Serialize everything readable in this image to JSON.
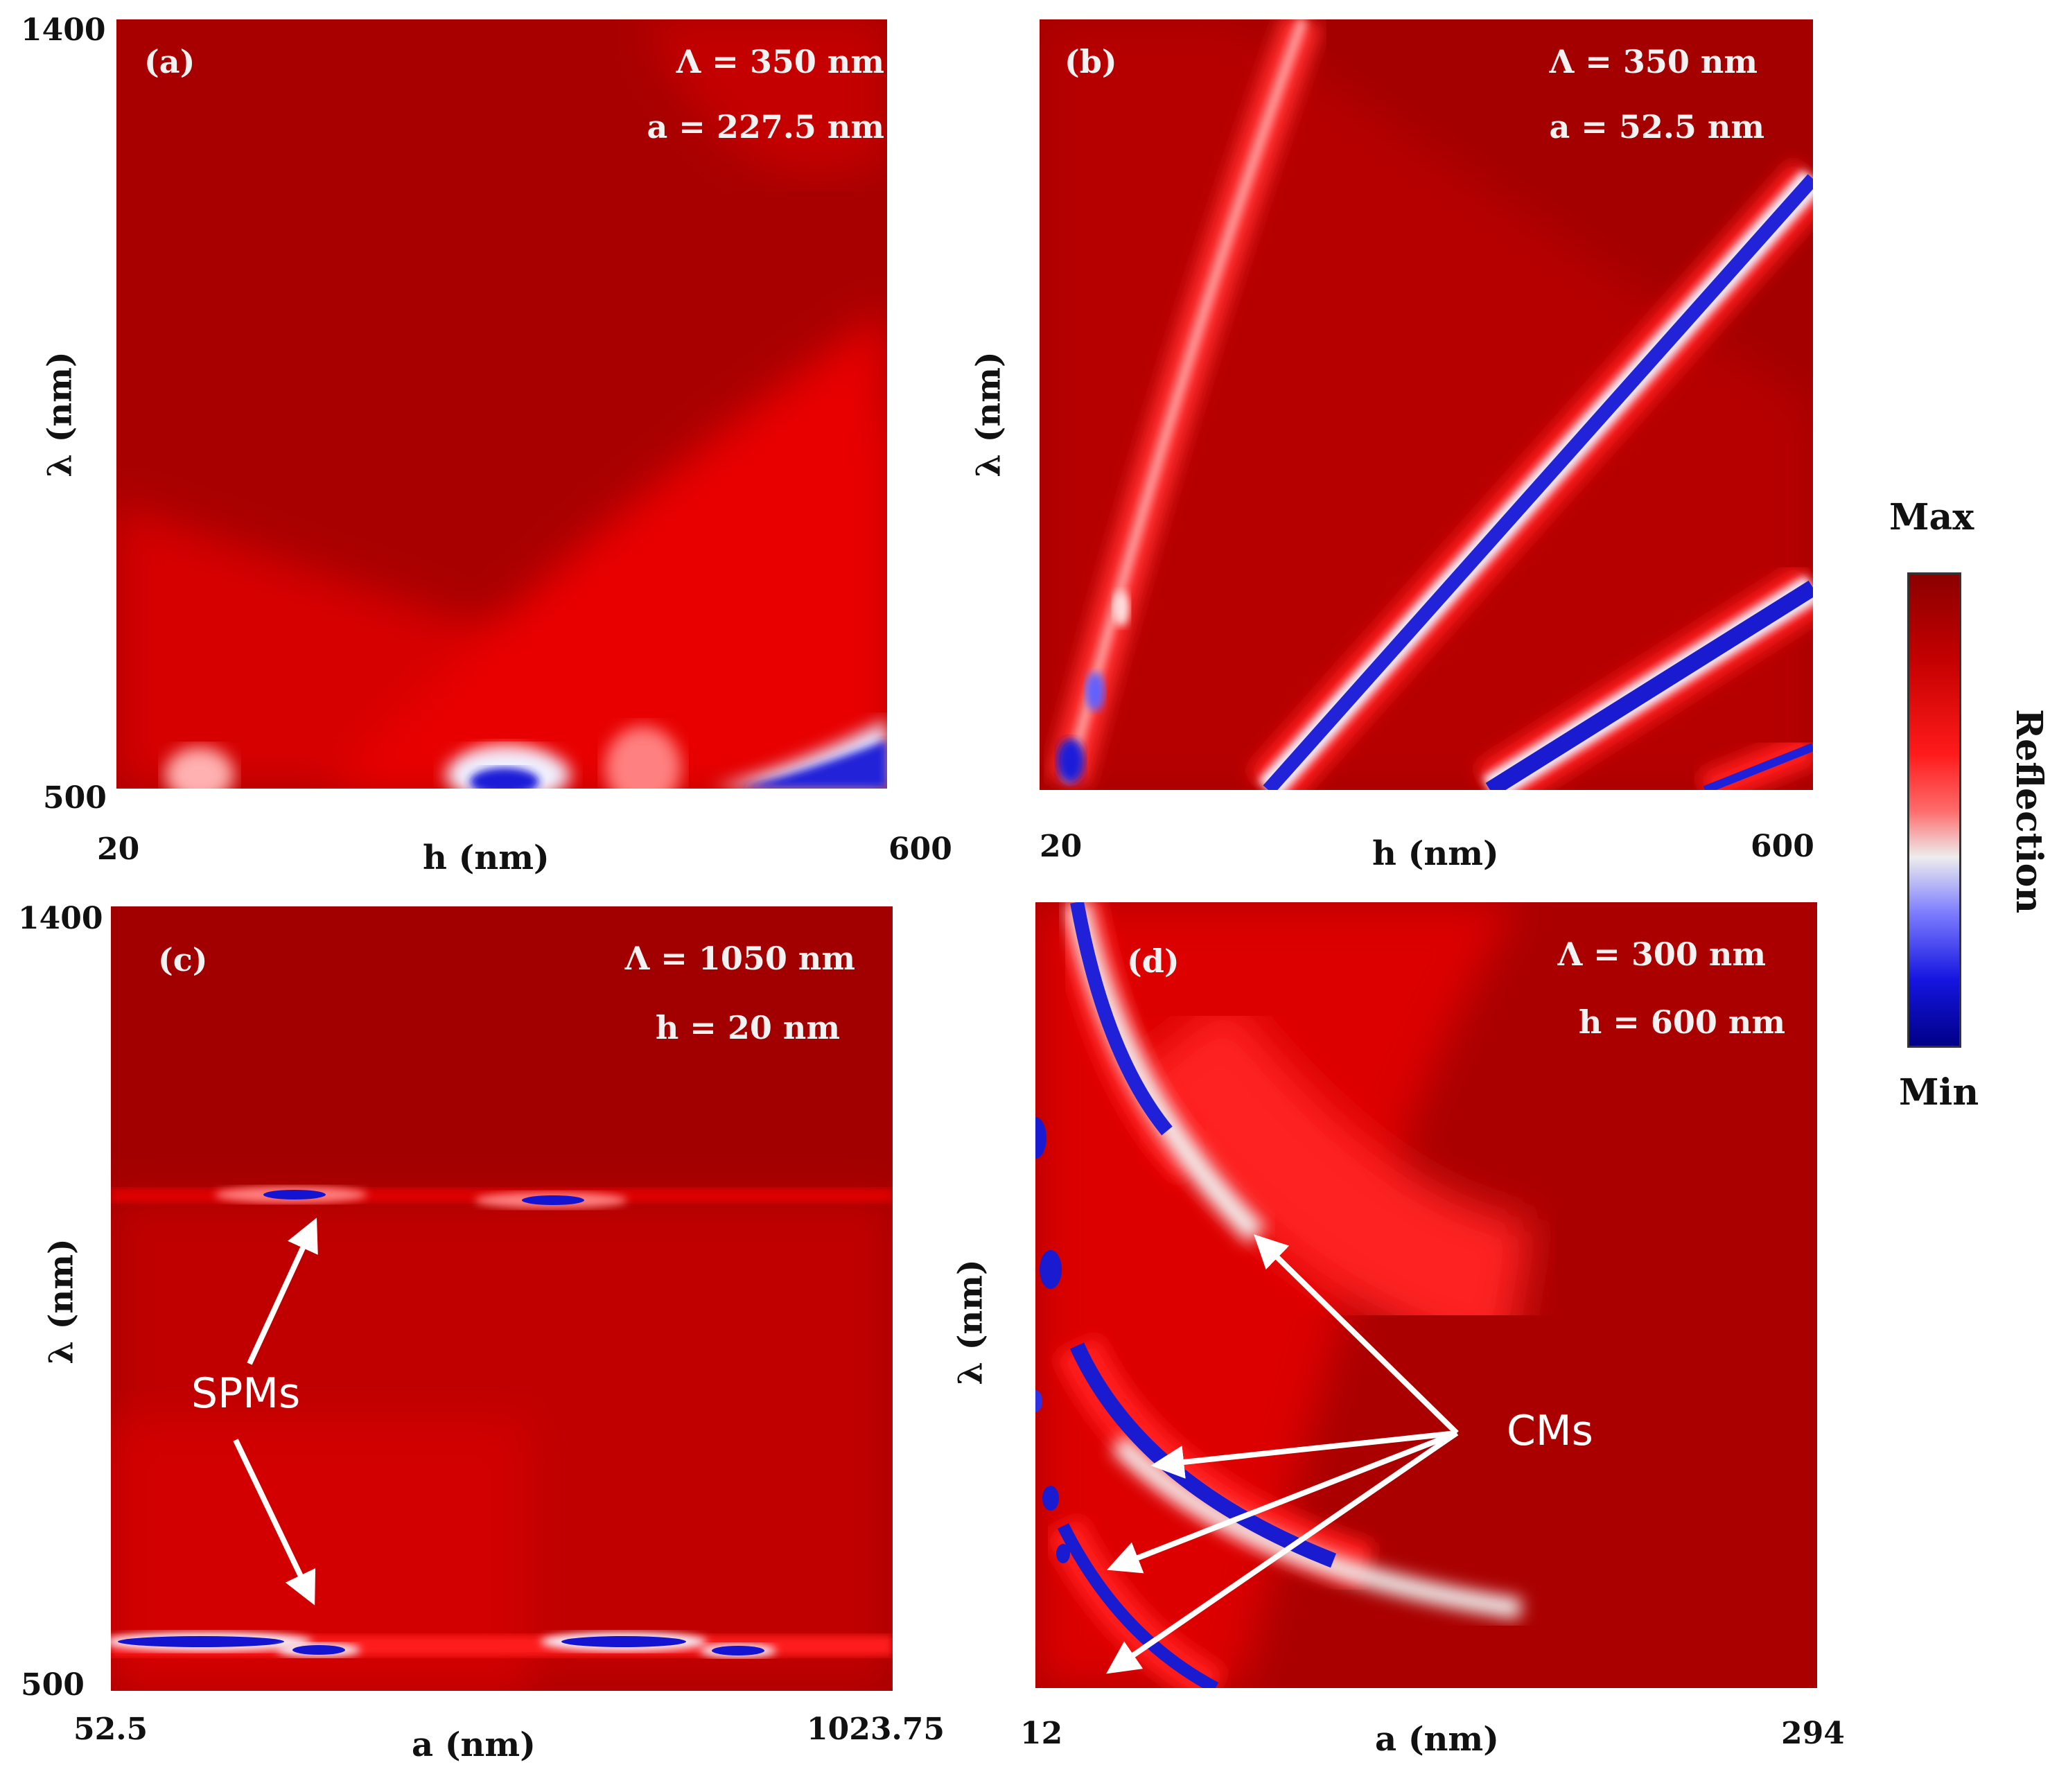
{
  "colorbar": {
    "max_label": "Max",
    "min_label": "Min",
    "title": "Reflection"
  },
  "panels": [
    {
      "id": "a",
      "tag": "(a)",
      "ann": [
        "Λ = 350 nm",
        "a = 227.5 nm"
      ],
      "xlabel": "h (nm)",
      "ylabel": "λ (nm)",
      "xticks": [
        "20",
        "600"
      ],
      "yticks": [
        "1400",
        "500"
      ]
    },
    {
      "id": "b",
      "tag": "(b)",
      "ann": [
        "Λ = 350 nm",
        "a = 52.5 nm"
      ],
      "xlabel": "h (nm)",
      "ylabel": "λ (nm)",
      "xticks": [
        "20",
        "600"
      ],
      "yticks": []
    },
    {
      "id": "c",
      "tag": "(c)",
      "ann": [
        "Λ = 1050 nm",
        "h = 20 nm"
      ],
      "xlabel": "a (nm)",
      "ylabel": "λ (nm)",
      "xticks": [
        "52.5",
        "1023.75"
      ],
      "yticks": [
        "1400",
        "500"
      ],
      "mode_label": "SPMs"
    },
    {
      "id": "d",
      "tag": "(d)",
      "ann": [
        "Λ = 300 nm",
        "h = 600 nm"
      ],
      "xlabel": "a (nm)",
      "ylabel": "λ (nm)",
      "xticks": [
        "12",
        "294"
      ],
      "yticks": [],
      "mode_label": "CMs"
    }
  ],
  "chart_data": [
    {
      "type": "heatmap",
      "panel": "(a)",
      "title": "",
      "xlabel": "h (nm)",
      "ylabel": "λ (nm)",
      "xlim": [
        20,
        600
      ],
      "ylim": [
        500,
        1400
      ],
      "colorbar": [
        "Min",
        "Max"
      ],
      "quantity": "Reflection",
      "params": {
        "Λ": "350 nm",
        "a": "227.5 nm"
      }
    },
    {
      "type": "heatmap",
      "panel": "(b)",
      "title": "",
      "xlabel": "h (nm)",
      "ylabel": "λ (nm)",
      "xlim": [
        20,
        600
      ],
      "ylim": [
        500,
        1400
      ],
      "colorbar": [
        "Min",
        "Max"
      ],
      "quantity": "Reflection",
      "params": {
        "Λ": "350 nm",
        "a": "52.5 nm"
      }
    },
    {
      "type": "heatmap",
      "panel": "(c)",
      "title": "",
      "xlabel": "a (nm)",
      "ylabel": "λ (nm)",
      "xlim": [
        52.5,
        1023.75
      ],
      "ylim": [
        500,
        1400
      ],
      "colorbar": [
        "Min",
        "Max"
      ],
      "quantity": "Reflection",
      "params": {
        "Λ": "1050 nm",
        "h": "20 nm"
      },
      "annotation": "SPMs"
    },
    {
      "type": "heatmap",
      "panel": "(d)",
      "title": "",
      "xlabel": "a (nm)",
      "ylabel": "λ (nm)",
      "xlim": [
        12,
        294
      ],
      "ylim": [
        500,
        1400
      ],
      "colorbar": [
        "Min",
        "Max"
      ],
      "quantity": "Reflection",
      "params": {
        "Λ": "300 nm",
        "h": "600 nm"
      },
      "annotation": "CMs"
    }
  ]
}
